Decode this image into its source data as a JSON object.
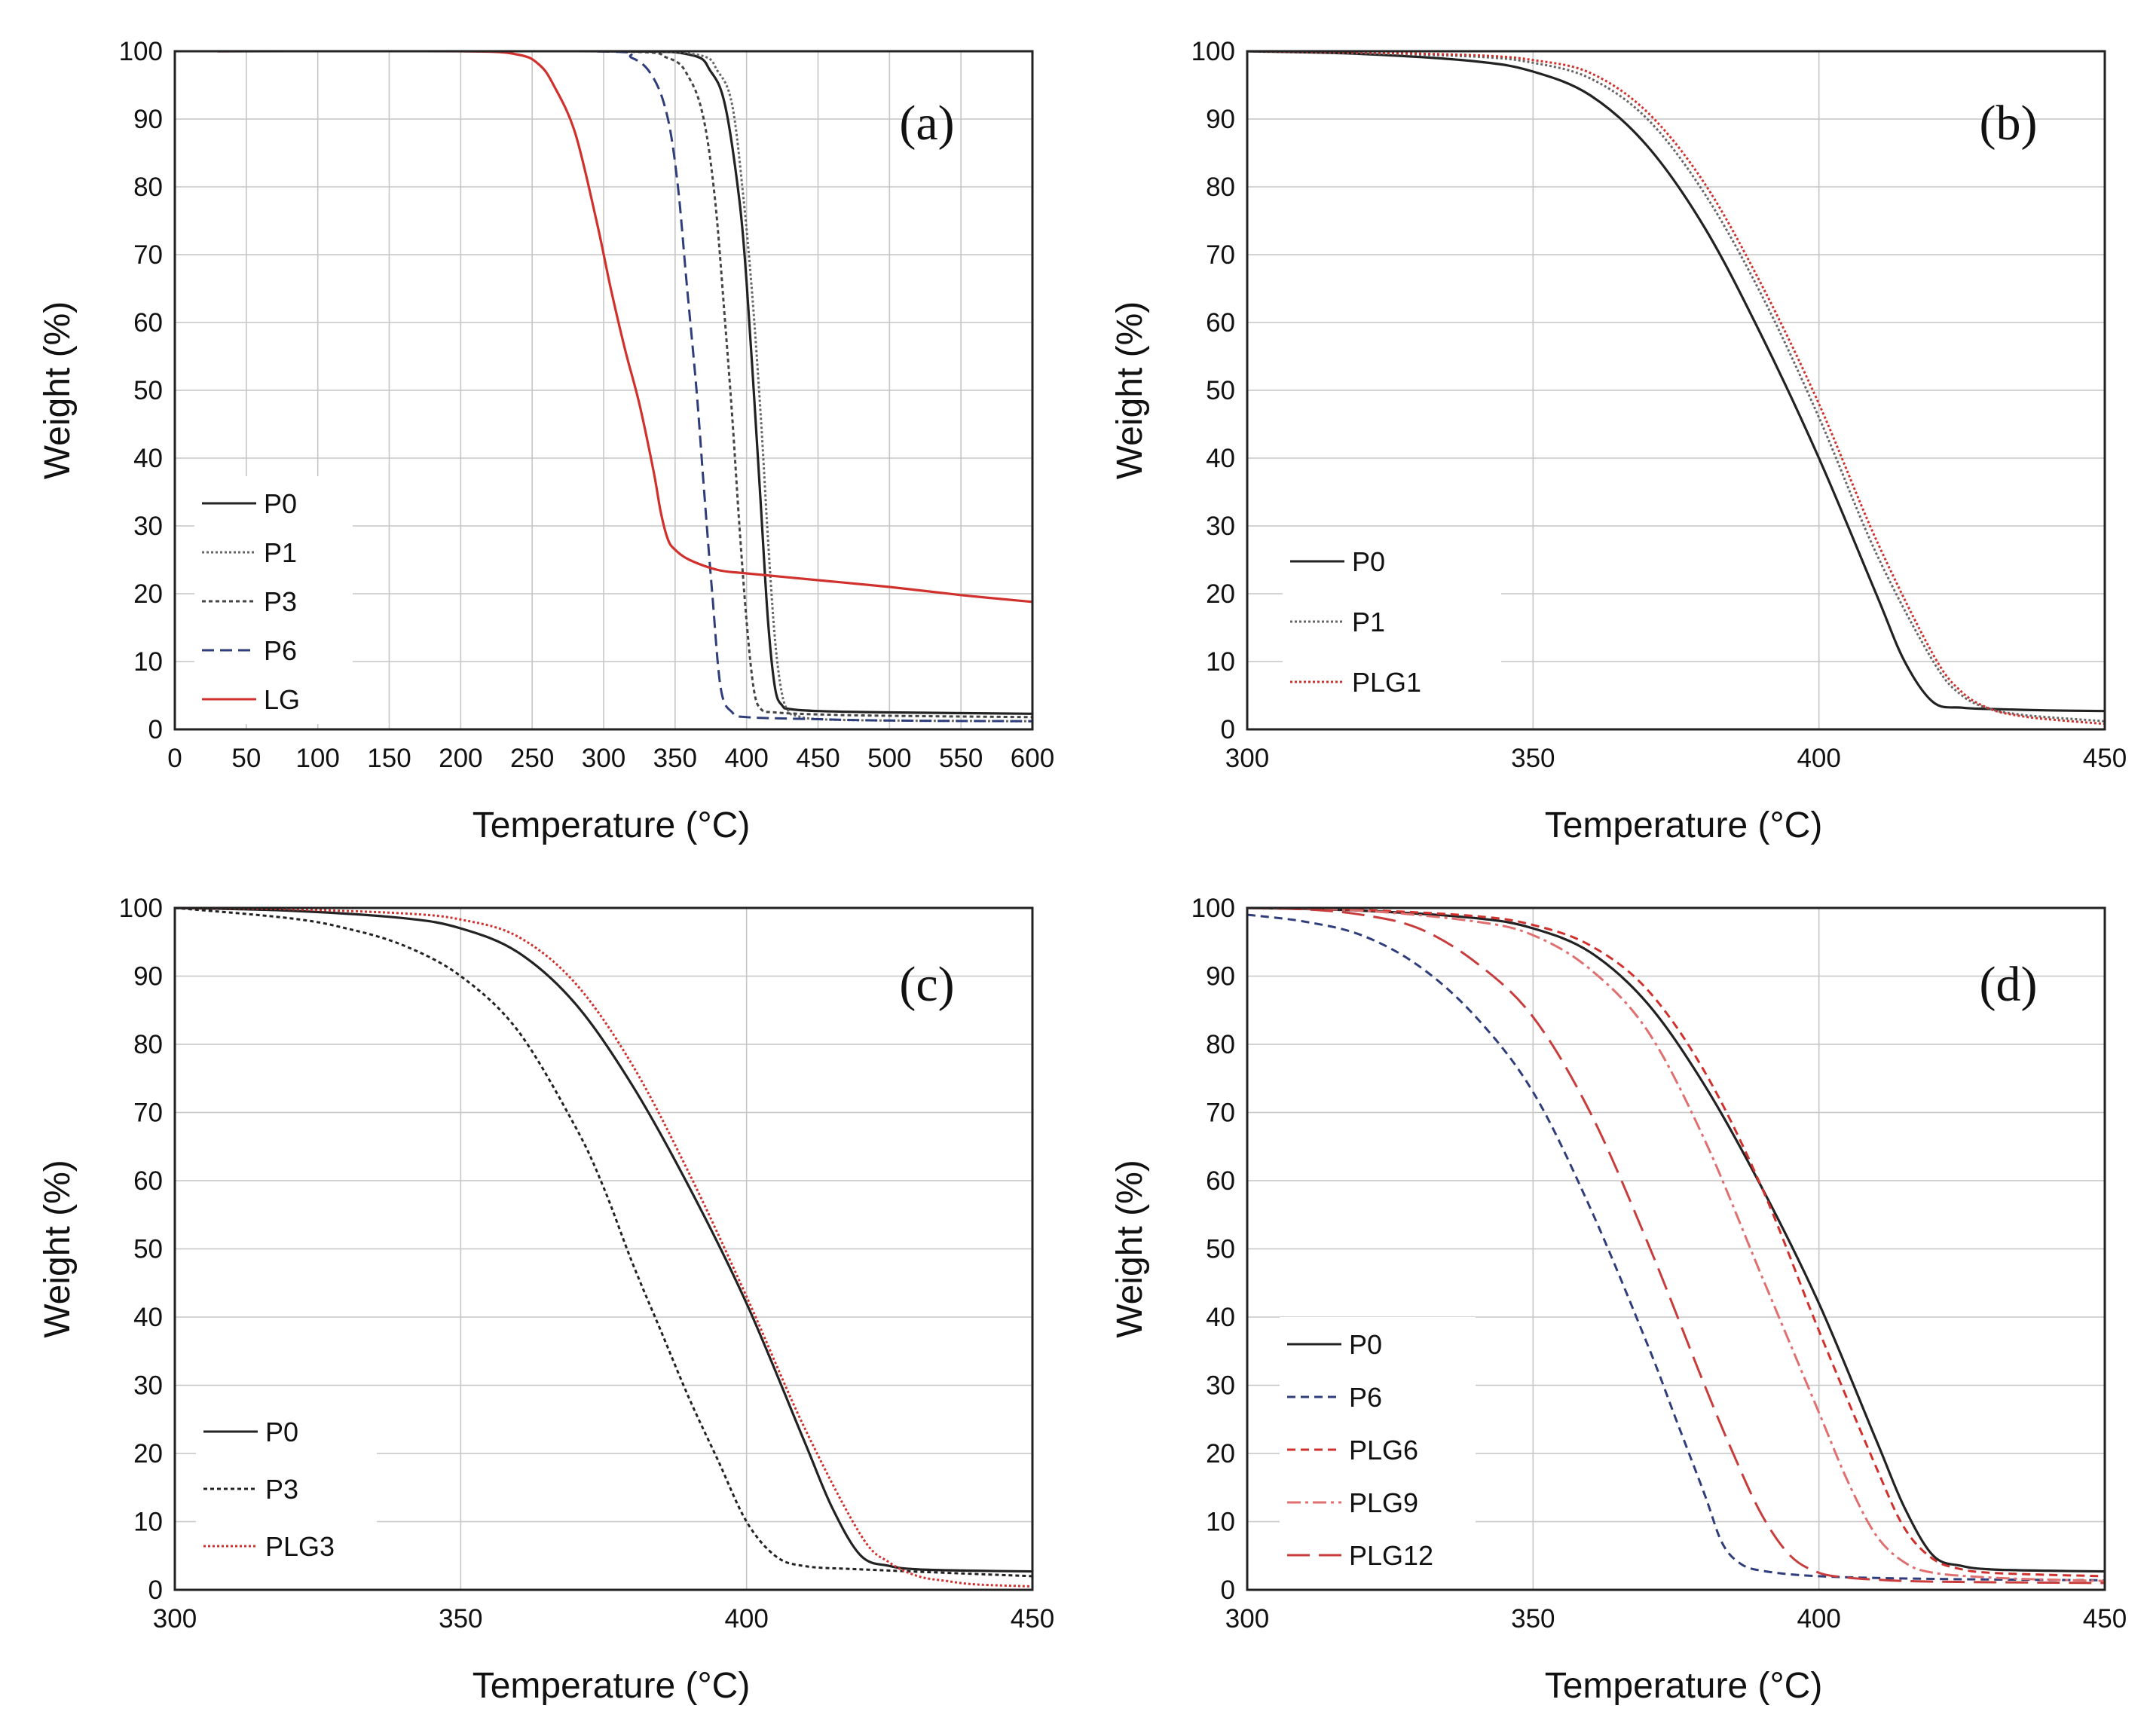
{
  "chart_data": [
    {
      "type": "line",
      "panel_label": "(a)",
      "xlabel": "Temperature (°C)",
      "ylabel": "Weight (%)",
      "xlim": [
        0,
        600
      ],
      "ylim": [
        0,
        100
      ],
      "xticks": [
        0,
        50,
        100,
        150,
        200,
        250,
        300,
        350,
        400,
        450,
        500,
        550,
        600
      ],
      "yticks": [
        0,
        10,
        20,
        30,
        40,
        50,
        60,
        70,
        80,
        90,
        100
      ],
      "grid": true,
      "legend_position": "bottom-left",
      "series": [
        {
          "name": "P0",
          "color": "#222222",
          "dash": "solid",
          "x": [
            30,
            300,
            360,
            375,
            385,
            395,
            400,
            405,
            410,
            415,
            420,
            425,
            430,
            450,
            500,
            600
          ],
          "y": [
            100,
            100,
            99.5,
            97,
            92,
            78,
            66,
            50,
            33,
            16,
            6,
            3.5,
            3,
            2.7,
            2.5,
            2.3
          ]
        },
        {
          "name": "P1",
          "color": "#666666",
          "dash": "dotted",
          "x": [
            30,
            300,
            365,
            380,
            390,
            398,
            404,
            410,
            415,
            420,
            425,
            430,
            435,
            450,
            500,
            600
          ],
          "y": [
            100,
            100,
            99.5,
            97,
            92,
            78,
            64,
            46,
            28,
            13,
            5,
            2.5,
            2,
            1.5,
            1.3,
            1.2
          ]
        },
        {
          "name": "P3",
          "color": "#444444",
          "dash": "dotted-dense",
          "x": [
            30,
            300,
            345,
            360,
            370,
            378,
            385,
            390,
            395,
            400,
            405,
            410,
            420,
            450,
            500,
            600
          ],
          "y": [
            100,
            100,
            99,
            96,
            90,
            78,
            60,
            46,
            30,
            16,
            6,
            3,
            2.5,
            2.2,
            2,
            1.8
          ]
        },
        {
          "name": "P6",
          "color": "#2f3d7a",
          "dash": "dashed",
          "x": [
            30,
            290,
            320,
            335,
            345,
            352,
            358,
            365,
            370,
            376,
            382,
            390,
            400,
            450,
            500,
            600
          ],
          "y": [
            100,
            100,
            99,
            96,
            90,
            80,
            66,
            50,
            36,
            20,
            6,
            2.5,
            1.8,
            1.5,
            1.3,
            1.2
          ]
        },
        {
          "name": "LG",
          "color": "#d0312d",
          "dash": "solid",
          "x": [
            30,
            200,
            240,
            255,
            265,
            280,
            295,
            305,
            315,
            325,
            335,
            340,
            345,
            350,
            360,
            380,
            400,
            450,
            500,
            550,
            600
          ],
          "y": [
            100,
            100,
            99.5,
            98,
            95,
            88,
            75,
            65,
            56,
            48,
            38,
            32,
            28,
            26.5,
            25,
            23.5,
            23,
            22,
            21,
            19.8,
            18.8
          ]
        }
      ]
    },
    {
      "type": "line",
      "panel_label": "(b)",
      "xlabel": "Temperature (°C)",
      "ylabel": "Weight (%)",
      "xlim": [
        300,
        450
      ],
      "ylim": [
        0,
        100
      ],
      "xticks": [
        300,
        350,
        400,
        450
      ],
      "yticks": [
        0,
        10,
        20,
        30,
        40,
        50,
        60,
        70,
        80,
        90,
        100
      ],
      "grid": true,
      "legend_position": "bottom-left",
      "series": [
        {
          "name": "P0",
          "color": "#222222",
          "dash": "solid",
          "x": [
            300,
            320,
            340,
            350,
            360,
            370,
            380,
            390,
            400,
            410,
            415,
            420,
            425,
            430,
            440,
            450
          ],
          "y": [
            100,
            99.6,
            98.5,
            97,
            93.5,
            86,
            74,
            58,
            40,
            20,
            10,
            4,
            3.2,
            3,
            2.8,
            2.7
          ]
        },
        {
          "name": "P1",
          "color": "#666666",
          "dash": "dotted",
          "x": [
            300,
            320,
            340,
            350,
            360,
            370,
            380,
            390,
            400,
            410,
            420,
            425,
            430,
            435,
            440,
            450
          ],
          "y": [
            100,
            99.7,
            99.2,
            98.3,
            96,
            90,
            79,
            64,
            46,
            26,
            10,
            5,
            3,
            2.2,
            1.8,
            1.2
          ]
        },
        {
          "name": "PLG1",
          "color": "#d0312d",
          "dash": "dotted",
          "x": [
            300,
            320,
            340,
            350,
            360,
            370,
            380,
            390,
            400,
            410,
            420,
            425,
            430,
            435,
            440,
            450
          ],
          "y": [
            100,
            99.8,
            99.4,
            98.7,
            96.8,
            91,
            80.5,
            65.5,
            48,
            28,
            11,
            5.5,
            3,
            2,
            1.5,
            0.8
          ]
        }
      ]
    },
    {
      "type": "line",
      "panel_label": "(c)",
      "xlabel": "Temperature (°C)",
      "ylabel": "Weight (%)",
      "xlim": [
        300,
        450
      ],
      "ylim": [
        0,
        100
      ],
      "xticks": [
        300,
        350,
        400,
        450
      ],
      "yticks": [
        0,
        10,
        20,
        30,
        40,
        50,
        60,
        70,
        80,
        90,
        100
      ],
      "grid": true,
      "legend_position": "bottom-left",
      "series": [
        {
          "name": "P0",
          "color": "#222222",
          "dash": "solid",
          "x": [
            300,
            320,
            340,
            350,
            360,
            370,
            380,
            390,
            400,
            410,
            415,
            420,
            425,
            430,
            440,
            450
          ],
          "y": [
            100,
            99.6,
            98.5,
            97,
            93.5,
            86,
            74,
            59,
            42,
            22,
            12,
            5,
            3.5,
            3,
            2.8,
            2.7
          ]
        },
        {
          "name": "P3",
          "color": "#222222",
          "dash": "dotted-dense",
          "x": [
            300,
            320,
            330,
            340,
            350,
            360,
            370,
            375,
            380,
            385,
            390,
            395,
            400,
            405,
            410,
            420,
            450
          ],
          "y": [
            100,
            98.5,
            97,
            94.5,
            90,
            82,
            68,
            59,
            48,
            38,
            28,
            19,
            10,
            5,
            3.5,
            3,
            2
          ]
        },
        {
          "name": "PLG3",
          "color": "#d0312d",
          "dash": "dotted",
          "x": [
            300,
            320,
            340,
            350,
            360,
            370,
            380,
            390,
            400,
            410,
            420,
            425,
            430,
            435,
            440,
            450
          ],
          "y": [
            100,
            99.8,
            99.2,
            98.3,
            95.8,
            89,
            77,
            61,
            43,
            24,
            8,
            4,
            2,
            1.3,
            0.8,
            0.5
          ]
        }
      ]
    },
    {
      "type": "line",
      "panel_label": "(d)",
      "xlabel": "Temperature (°C)",
      "ylabel": "Weight (%)",
      "xlim": [
        300,
        450
      ],
      "ylim": [
        0,
        100
      ],
      "xticks": [
        300,
        350,
        400,
        450
      ],
      "yticks": [
        0,
        10,
        20,
        30,
        40,
        50,
        60,
        70,
        80,
        90,
        100
      ],
      "grid": true,
      "legend_position": "bottom-left",
      "series": [
        {
          "name": "P0",
          "color": "#222222",
          "dash": "solid",
          "x": [
            300,
            320,
            340,
            350,
            360,
            370,
            380,
            390,
            400,
            410,
            415,
            420,
            425,
            430,
            440,
            450
          ],
          "y": [
            100,
            99.6,
            98.5,
            97,
            93.5,
            86,
            74,
            59,
            42,
            22,
            12,
            5,
            3.5,
            3,
            2.8,
            2.7
          ]
        },
        {
          "name": "P6",
          "color": "#2f3d7a",
          "dash": "dashed-short",
          "x": [
            300,
            310,
            320,
            330,
            340,
            350,
            360,
            370,
            375,
            380,
            383,
            386,
            390,
            400,
            420,
            450
          ],
          "y": [
            99,
            98,
            96,
            91.5,
            84,
            73,
            56,
            36,
            25,
            14,
            7,
            4,
            2.8,
            2,
            1.6,
            1.4
          ]
        },
        {
          "name": "PLG6",
          "color": "#d0312d",
          "dash": "dashed-short",
          "x": [
            300,
            320,
            340,
            350,
            360,
            370,
            380,
            390,
            400,
            410,
            415,
            420,
            425,
            430,
            440,
            450
          ],
          "y": [
            100,
            99.7,
            98.8,
            97.5,
            94.5,
            88,
            76,
            59,
            38,
            18,
            9,
            4.5,
            3,
            2.5,
            2.2,
            2
          ]
        },
        {
          "name": "PLG9",
          "color": "#e06f6f",
          "dash": "dash-dot",
          "x": [
            300,
            320,
            340,
            350,
            360,
            370,
            380,
            390,
            400,
            405,
            410,
            415,
            420,
            430,
            440,
            450
          ],
          "y": [
            100,
            99.6,
            98,
            96,
            91,
            82,
            66,
            46,
            26,
            16,
            8,
            4,
            2.5,
            1.8,
            1.5,
            1.3
          ]
        },
        {
          "name": "PLG12",
          "color": "#c83c3c",
          "dash": "long-dash",
          "x": [
            300,
            310,
            320,
            330,
            340,
            350,
            360,
            370,
            380,
            385,
            390,
            395,
            400,
            405,
            410,
            420,
            450
          ],
          "y": [
            100,
            99.8,
            99,
            97,
            92,
            84,
            70,
            51,
            30,
            20,
            11,
            5,
            2.5,
            1.8,
            1.5,
            1.2,
            1
          ]
        }
      ]
    }
  ]
}
